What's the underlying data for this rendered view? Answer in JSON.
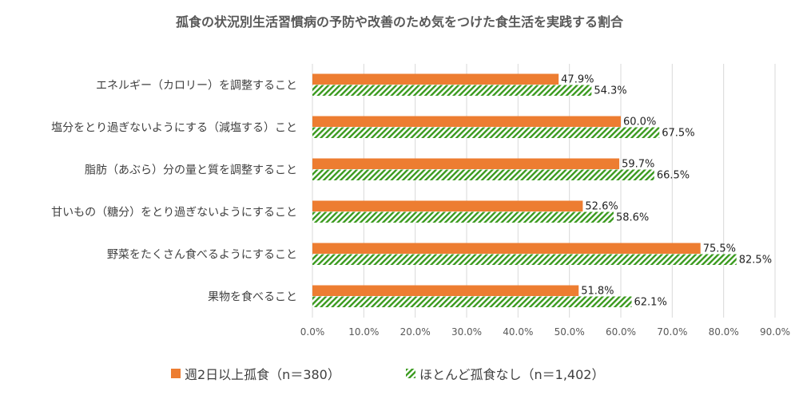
{
  "chart_data": {
    "type": "bar",
    "orientation": "horizontal",
    "title": "孤食の状況別生活習慣病の予防や改善のため気をつけた食生活を実践する割合",
    "categories": [
      "エネルギー（カロリー）を調整すること",
      "塩分をとり過ぎないようにする（減塩する）こと",
      "脂肪（あぶら）分の量と質を調整すること",
      "甘いもの（糖分）をとり過ぎないようにすること",
      "野菜をたくさん食べるようにすること",
      "果物を食べること"
    ],
    "series": [
      {
        "name": "週2日以上孤食（n＝380）",
        "color": "#ED7D31",
        "pattern": "solid",
        "values": [
          47.9,
          60.0,
          59.7,
          52.6,
          75.5,
          51.8
        ]
      },
      {
        "name": "ほとんど孤食なし（n＝1,402）",
        "color": "#3A9A1E",
        "pattern": "diagonal-stripes",
        "values": [
          54.3,
          67.5,
          66.5,
          58.6,
          82.5,
          62.1
        ]
      }
    ],
    "xlim": [
      0,
      90
    ],
    "xticks": [
      "0.0%",
      "10.0%",
      "20.0%",
      "30.0%",
      "40.0%",
      "50.0%",
      "60.0%",
      "70.0%",
      "80.0%",
      "90.0%"
    ],
    "grid": true,
    "legend": "bottom"
  }
}
